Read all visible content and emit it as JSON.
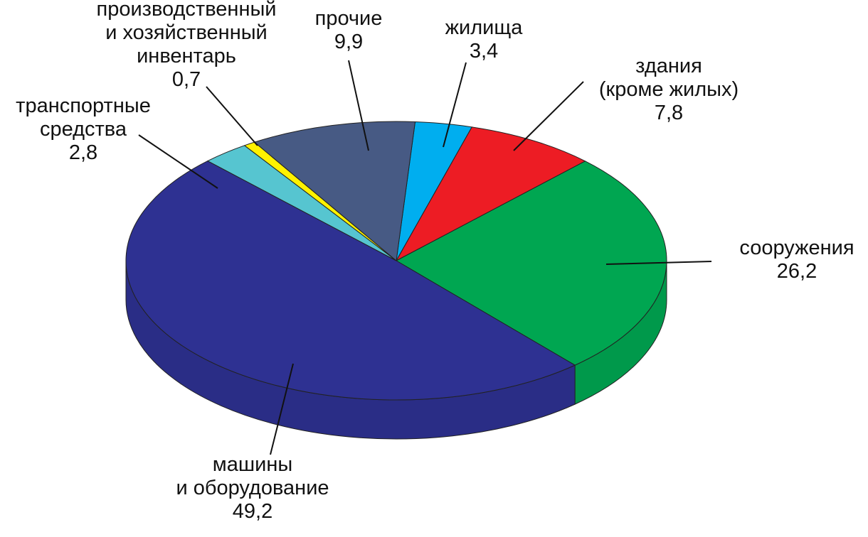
{
  "chart_data": {
    "type": "pie",
    "categories": [
      "жилища",
      "здания\n(кроме жилых)",
      "сооружения",
      "машины\nи оборудование",
      "транспортные\nсредства",
      "производственный\nи хозяйственный\nинвентарь",
      "прочие"
    ],
    "values": [
      3.4,
      7.8,
      26.2,
      49.2,
      2.8,
      0.7,
      9.9
    ],
    "value_labels": [
      "3,4",
      "7,8",
      "26,2",
      "49,2",
      "2,8",
      "0,7",
      "9,9"
    ],
    "colors": [
      "#00aeef",
      "#ed1c24",
      "#00a651",
      "#2e3192",
      "#56c5d0",
      "#fff200",
      "#475a84"
    ]
  }
}
